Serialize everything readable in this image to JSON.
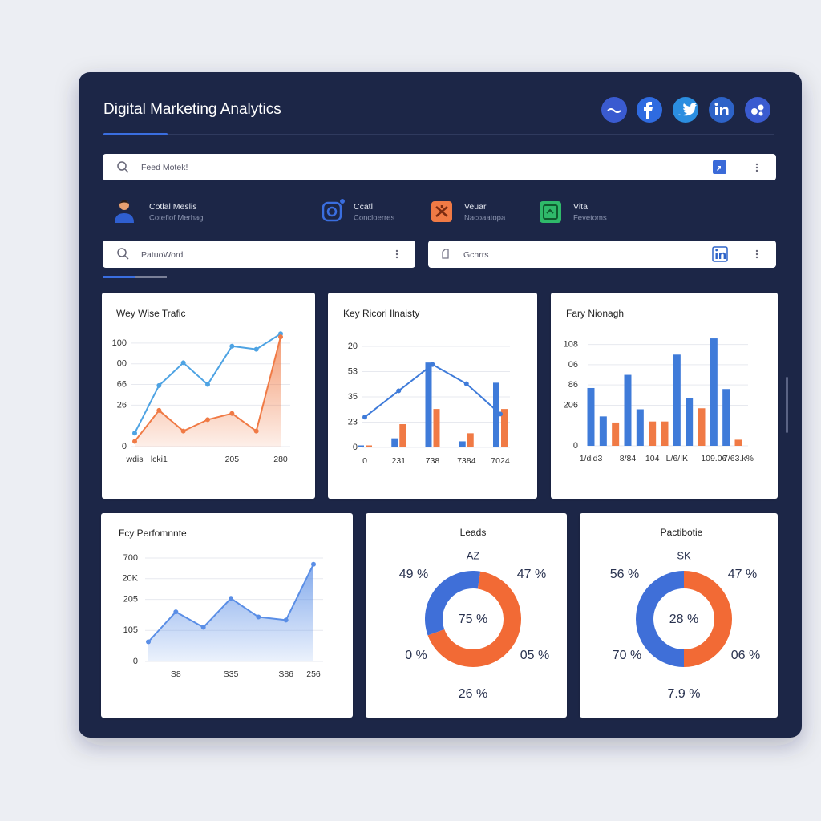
{
  "header": {
    "title": "Digital Marketing Analytics"
  },
  "search_bars": [
    "Feed Motek!",
    "PatuoWord",
    "Gchrrs"
  ],
  "stats": [
    {
      "title": "Cotlal Meslis",
      "subtitle": "Cotefiof Merhag"
    },
    {
      "title": "Ccatl",
      "subtitle": "Concloerres"
    },
    {
      "title": "Veuar",
      "subtitle": "Nacoaatopa"
    },
    {
      "title": "Vita",
      "subtitle": "Fevetoms"
    }
  ],
  "chart_data": [
    {
      "type": "line",
      "title": "Wey Wise Trafic",
      "categories": [
        "wdis",
        "lcki1",
        null,
        null,
        "205",
        null,
        "280"
      ],
      "ylim": [
        0,
        110
      ],
      "yticks": [
        0,
        {
          "value": 40,
          "label": "26"
        },
        {
          "value": 60,
          "label": "66"
        },
        {
          "value": 80,
          "label": "00"
        },
        100
      ],
      "grid": true,
      "series": [
        {
          "color": "#4ea3e3",
          "values": [
            13,
            59,
            81,
            60,
            97,
            94,
            109
          ]
        },
        {
          "color": "#f07a45",
          "area": true,
          "values": [
            5,
            35,
            15,
            26,
            32,
            15,
            106
          ]
        }
      ]
    },
    {
      "type": "combo",
      "title": "Key Ricori Ilnaisty",
      "categories": [
        "0",
        "231",
        "738",
        "7384",
        "7024"
      ],
      "ylim": [
        0,
        100
      ],
      "yticks": [
        0,
        {
          "value": 25,
          "label": "23"
        },
        {
          "value": 50,
          "label": "35"
        },
        {
          "value": 75,
          "label": "53"
        },
        {
          "value": 100,
          "label": "20"
        }
      ],
      "grid": true,
      "series": [
        {
          "kind": "bar",
          "color": "#3f7bd9",
          "values": [
            2,
            9,
            84,
            6,
            64
          ]
        },
        {
          "kind": "bar",
          "color": "#f07a45",
          "values": [
            2,
            23,
            38,
            14,
            38
          ]
        },
        {
          "kind": "line",
          "color": "#3f7bd9",
          "values": [
            30,
            56,
            82,
            63,
            33
          ]
        }
      ]
    },
    {
      "type": "bar",
      "title": "Fary Nionagh",
      "categories": [
        "1/did3",
        null,
        null,
        "8/84",
        null,
        "104",
        null,
        "L/6/IK",
        null,
        null,
        "109.06",
        null,
        "7/63.k%"
      ],
      "values": [
        57,
        29,
        23,
        70,
        36,
        24,
        24,
        90,
        47,
        37,
        106,
        56,
        6
      ],
      "colors": [
        "#3f7bd9",
        "#3f7bd9",
        "#f07a45",
        "#3f7bd9",
        "#3f7bd9",
        "#f07a45",
        "#f07a45",
        "#3f7bd9",
        "#3f7bd9",
        "#f07a45",
        "#3f7bd9",
        "#3f7bd9",
        "#f07a45"
      ],
      "ylim": [
        0,
        110
      ],
      "yticks": [
        0,
        {
          "value": 40,
          "label": "206"
        },
        {
          "value": 60,
          "label": "86"
        },
        {
          "value": 80,
          "label": "06"
        },
        {
          "value": 100,
          "label": "108"
        }
      ],
      "grid": true
    },
    {
      "type": "area",
      "title": "Fcy Perfomnnte",
      "categories": [
        null,
        "S8",
        null,
        "S35",
        null,
        "S86",
        "256"
      ],
      "values": [
        19,
        48,
        33,
        61,
        43,
        40,
        94
      ],
      "color": "#5a8ee6",
      "ylim": [
        0,
        100
      ],
      "yticks": [
        0,
        {
          "value": 30,
          "label": "105"
        },
        {
          "value": 60,
          "label": "205"
        },
        {
          "value": 80,
          "label": "20K"
        },
        {
          "value": 100,
          "label": "700"
        }
      ],
      "grid": true
    },
    {
      "type": "donut",
      "title": "Leads",
      "subtitle": "AZ",
      "center_label": "75 %",
      "values": [
        33,
        67
      ],
      "colors": [
        "#3f6fd8",
        "#f26a35"
      ],
      "annotations": [
        "49 %",
        "47 %",
        "0 %",
        "05 %",
        "26 %"
      ]
    },
    {
      "type": "donut",
      "title": "Pactibotie",
      "subtitle": "SK",
      "center_label": "28 %",
      "values": [
        50,
        50
      ],
      "colors": [
        "#3f6fd8",
        "#f26a35"
      ],
      "annotations": [
        "56 %",
        "47 %",
        "70 %",
        "06 %",
        "7.9 %"
      ]
    }
  ]
}
